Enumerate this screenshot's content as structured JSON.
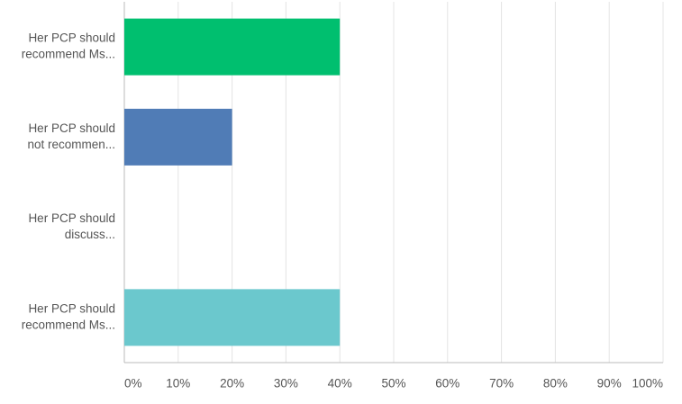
{
  "chart_data": {
    "type": "bar",
    "orientation": "horizontal",
    "categories": [
      [
        "Her PCP should",
        "recommend Ms..."
      ],
      [
        "Her PCP should",
        "not recommen..."
      ],
      [
        "Her PCP should",
        "discuss..."
      ],
      [
        "Her PCP should",
        "recommend Ms..."
      ]
    ],
    "values": [
      40,
      20,
      0,
      40
    ],
    "colors": [
      "#00bf6f",
      "#507cb6",
      null,
      "#6bc8cd"
    ],
    "xlim": [
      0,
      100
    ],
    "xticks": [
      {
        "value": 0,
        "label": "0%"
      },
      {
        "value": 10,
        "label": "10%"
      },
      {
        "value": 20,
        "label": "20%"
      },
      {
        "value": 30,
        "label": "30%"
      },
      {
        "value": 40,
        "label": "40%"
      },
      {
        "value": 50,
        "label": "50%"
      },
      {
        "value": 60,
        "label": "60%"
      },
      {
        "value": 70,
        "label": "70%"
      },
      {
        "value": 80,
        "label": "80%"
      },
      {
        "value": 90,
        "label": "90%"
      },
      {
        "value": 100,
        "label": "100%"
      }
    ],
    "grid": true
  }
}
